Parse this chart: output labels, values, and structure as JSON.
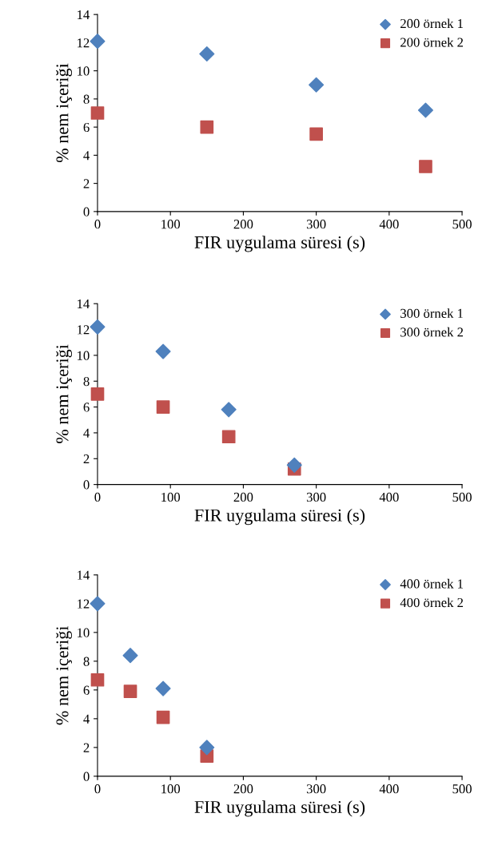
{
  "chart_data": [
    {
      "type": "scatter",
      "xlabel": "FIR uygulama süresi (s)",
      "ylabel": "% nem içeriği",
      "xlim": [
        0,
        500
      ],
      "ylim": [
        0,
        14
      ],
      "xticks": [
        0,
        100,
        200,
        300,
        400,
        500
      ],
      "yticks": [
        0,
        2,
        4,
        6,
        8,
        10,
        12,
        14
      ],
      "grid": false,
      "legend": "top right",
      "series": [
        {
          "name": "200 örnek 1",
          "color": "#4f81bd",
          "marker": "diamond",
          "x": [
            0,
            150,
            300,
            450
          ],
          "values": [
            12.1,
            11.2,
            9.0,
            7.2
          ]
        },
        {
          "name": "200 örnek 2",
          "color": "#c0504d",
          "marker": "square",
          "x": [
            0,
            150,
            300,
            450
          ],
          "values": [
            7.0,
            6.0,
            5.5,
            3.2
          ]
        }
      ]
    },
    {
      "type": "scatter",
      "xlabel": "FIR uygulama süresi (s)",
      "ylabel": "% nem içeriği",
      "xlim": [
        0,
        500
      ],
      "ylim": [
        0,
        14
      ],
      "xticks": [
        0,
        100,
        200,
        300,
        400,
        500
      ],
      "yticks": [
        0,
        2,
        4,
        6,
        8,
        10,
        12,
        14
      ],
      "grid": false,
      "legend": "top right",
      "series": [
        {
          "name": "300 örnek 1",
          "color": "#4f81bd",
          "marker": "diamond",
          "x": [
            0,
            90,
            180,
            270
          ],
          "values": [
            12.2,
            10.3,
            5.8,
            1.5
          ]
        },
        {
          "name": "300 örnek 2",
          "color": "#c0504d",
          "marker": "square",
          "x": [
            0,
            90,
            180,
            270
          ],
          "values": [
            7.0,
            6.0,
            3.7,
            1.2
          ]
        }
      ]
    },
    {
      "type": "scatter",
      "xlabel": "FIR uygulama süresi (s)",
      "ylabel": "% nem içeriği",
      "xlim": [
        0,
        500
      ],
      "ylim": [
        0,
        14
      ],
      "xticks": [
        0,
        100,
        200,
        300,
        400,
        500
      ],
      "yticks": [
        0,
        2,
        4,
        6,
        8,
        10,
        12,
        14
      ],
      "grid": false,
      "legend": "top right",
      "series": [
        {
          "name": "400 örnek 1",
          "color": "#4f81bd",
          "marker": "diamond",
          "x": [
            0,
            45,
            90,
            150
          ],
          "values": [
            12.0,
            8.4,
            6.1,
            2.0
          ]
        },
        {
          "name": "400 örnek 2",
          "color": "#c0504d",
          "marker": "square",
          "x": [
            0,
            45,
            90,
            150
          ],
          "values": [
            6.7,
            5.9,
            4.1,
            1.4
          ]
        }
      ]
    }
  ]
}
